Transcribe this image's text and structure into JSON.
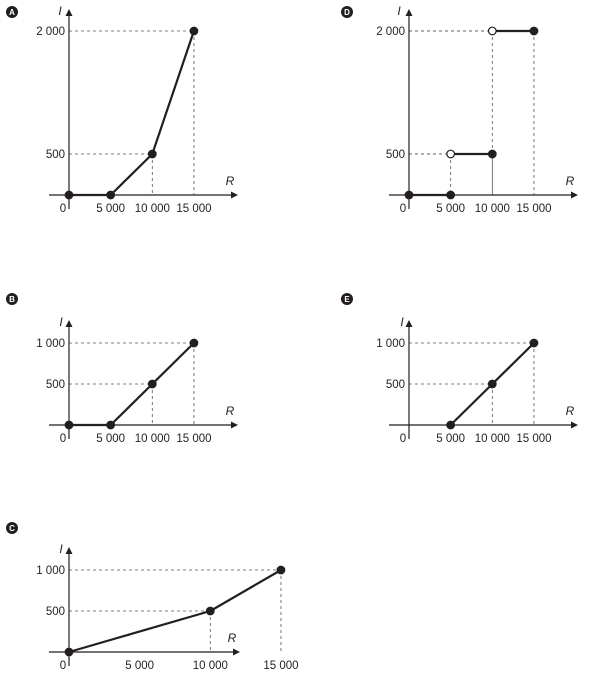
{
  "chart_data": [
    {
      "id": "A",
      "option_label": "A",
      "type": "line",
      "xlabel": "R",
      "ylabel": "I",
      "origin_label": "0",
      "x_ticks": [
        5000,
        10000,
        15000
      ],
      "x_tick_labels": [
        "5 000",
        "10 000",
        "15 000"
      ],
      "y_ticks": [
        500,
        2000
      ],
      "y_tick_labels": [
        "500",
        "2 000"
      ],
      "xlim": [
        0,
        20000
      ],
      "ylim": [
        0,
        2300
      ],
      "guides": [
        [
          10000,
          500
        ],
        [
          15000,
          2000
        ]
      ],
      "series": [
        {
          "points": [
            [
              0,
              0
            ],
            [
              5000,
              0
            ],
            [
              10000,
              500
            ],
            [
              15000,
              2000
            ]
          ]
        }
      ],
      "markers": [
        {
          "x": 0,
          "y": 0,
          "filled": true
        },
        {
          "x": 5000,
          "y": 0,
          "filled": true
        },
        {
          "x": 10000,
          "y": 500,
          "filled": true
        },
        {
          "x": 15000,
          "y": 2000,
          "filled": true
        }
      ]
    },
    {
      "id": "D",
      "option_label": "D",
      "type": "line",
      "xlabel": "R",
      "ylabel": "I",
      "origin_label": "0",
      "x_ticks": [
        5000,
        10000,
        15000
      ],
      "x_tick_labels": [
        "5 000",
        "10 000",
        "15 000"
      ],
      "y_ticks": [
        500,
        2000
      ],
      "y_tick_labels": [
        "500",
        "2 000"
      ],
      "xlim": [
        0,
        20000
      ],
      "ylim": [
        0,
        2300
      ],
      "guides": [
        [
          5000,
          500
        ],
        [
          10000,
          500
        ],
        [
          10000,
          2000
        ],
        [
          15000,
          2000
        ]
      ],
      "series": [
        {
          "points": [
            [
              0,
              0
            ],
            [
              5000,
              0
            ]
          ]
        },
        {
          "points": [
            [
              5000,
              500
            ],
            [
              10000,
              500
            ]
          ]
        },
        {
          "points": [
            [
              10000,
              2000
            ],
            [
              15000,
              2000
            ]
          ]
        }
      ],
      "markers": [
        {
          "x": 0,
          "y": 0,
          "filled": true
        },
        {
          "x": 5000,
          "y": 0,
          "filled": true
        },
        {
          "x": 5000,
          "y": 500,
          "filled": false
        },
        {
          "x": 10000,
          "y": 500,
          "filled": true
        },
        {
          "x": 10000,
          "y": 2000,
          "filled": false
        },
        {
          "x": 15000,
          "y": 2000,
          "filled": true
        }
      ]
    },
    {
      "id": "B",
      "option_label": "B",
      "type": "line",
      "xlabel": "R",
      "ylabel": "I",
      "origin_label": "0",
      "x_ticks": [
        5000,
        10000,
        15000
      ],
      "x_tick_labels": [
        "5 000",
        "10 000",
        "15 000"
      ],
      "y_ticks": [
        500,
        1000
      ],
      "y_tick_labels": [
        "500",
        "1 000"
      ],
      "xlim": [
        0,
        20000
      ],
      "ylim": [
        0,
        1150
      ],
      "guides": [
        [
          10000,
          500
        ],
        [
          15000,
          1000
        ]
      ],
      "series": [
        {
          "points": [
            [
              0,
              0
            ],
            [
              5000,
              0
            ],
            [
              10000,
              500
            ],
            [
              15000,
              1000
            ]
          ]
        }
      ],
      "markers": [
        {
          "x": 0,
          "y": 0,
          "filled": true
        },
        {
          "x": 5000,
          "y": 0,
          "filled": true
        },
        {
          "x": 10000,
          "y": 500,
          "filled": true
        },
        {
          "x": 15000,
          "y": 1000,
          "filled": true
        }
      ]
    },
    {
      "id": "E",
      "option_label": "E",
      "type": "line",
      "xlabel": "R",
      "ylabel": "I",
      "origin_label": "0",
      "x_ticks": [
        5000,
        10000,
        15000
      ],
      "x_tick_labels": [
        "5 000",
        "10 000",
        "15 000"
      ],
      "y_ticks": [
        500,
        1000
      ],
      "y_tick_labels": [
        "500",
        "1 000"
      ],
      "xlim": [
        0,
        20000
      ],
      "ylim": [
        0,
        1150
      ],
      "guides": [
        [
          10000,
          500
        ],
        [
          15000,
          1000
        ]
      ],
      "series": [
        {
          "points": [
            [
              5000,
              0
            ],
            [
              10000,
              500
            ],
            [
              15000,
              1000
            ]
          ]
        }
      ],
      "markers": [
        {
          "x": 5000,
          "y": 0,
          "filled": true
        },
        {
          "x": 10000,
          "y": 500,
          "filled": true
        },
        {
          "x": 15000,
          "y": 1000,
          "filled": true
        }
      ]
    },
    {
      "id": "C",
      "option_label": "C",
      "type": "line",
      "xlabel": "R",
      "ylabel": "I",
      "origin_label": "0",
      "x_ticks": [
        5000,
        10000,
        15000
      ],
      "x_tick_labels": [
        "5 000",
        "10 000",
        "15 000"
      ],
      "y_ticks": [
        500,
        1000
      ],
      "y_tick_labels": [
        "500",
        "1 000"
      ],
      "xlim": [
        0,
        20000
      ],
      "ylim": [
        0,
        1150
      ],
      "guides": [
        [
          10000,
          500
        ],
        [
          15000,
          1000
        ]
      ],
      "series": [
        {
          "points": [
            [
              0,
              0
            ],
            [
              10000,
              500
            ],
            [
              15000,
              1000
            ]
          ]
        }
      ],
      "markers": [
        {
          "x": 0,
          "y": 0,
          "filled": true
        },
        {
          "x": 10000,
          "y": 500,
          "filled": true
        },
        {
          "x": 15000,
          "y": 1000,
          "filled": true
        }
      ]
    }
  ]
}
